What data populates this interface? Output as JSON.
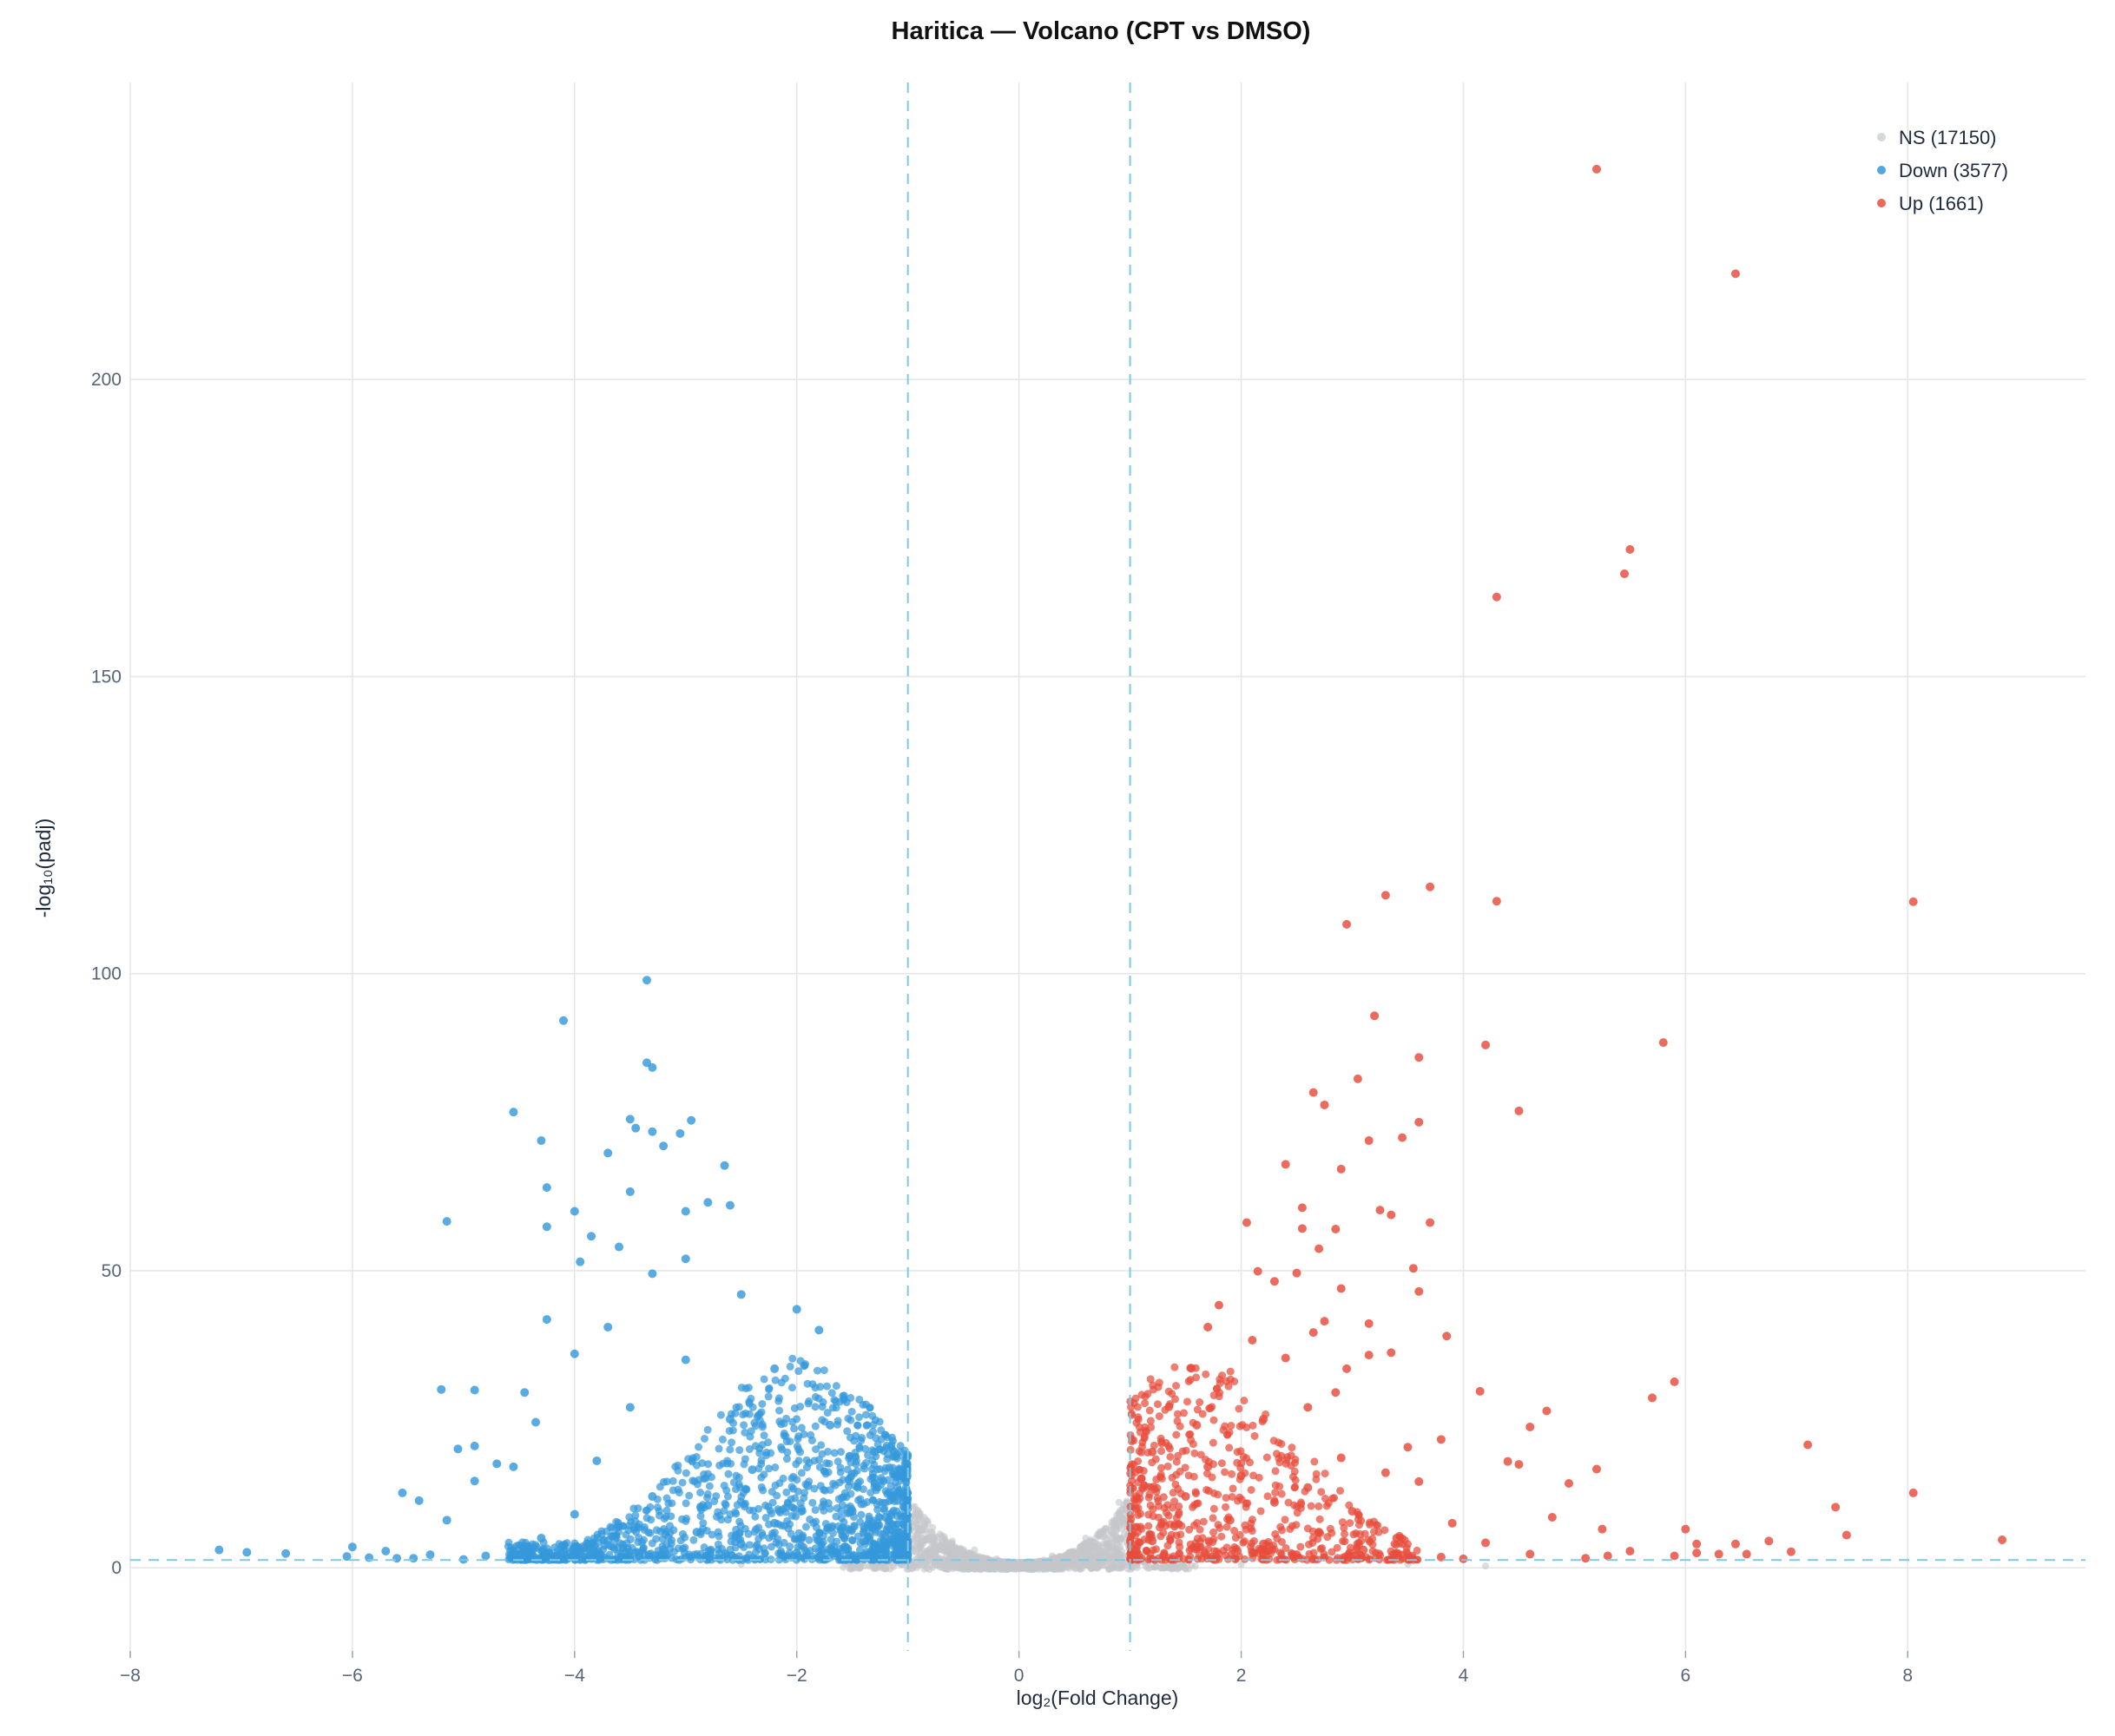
{
  "chart_data": {
    "type": "scatter",
    "title": "Haritica — Volcano (CPT vs DMSO)",
    "xlabel": "log₂(Fold Change)",
    "ylabel": "-log₁₀(padj)",
    "xlim": [
      -8,
      9.6
    ],
    "ylim": [
      -14,
      250
    ],
    "xticks": [
      -8,
      -6,
      -4,
      -2,
      0,
      2,
      4,
      6,
      8
    ],
    "yticks": [
      0,
      50,
      100,
      150,
      200
    ],
    "grid": true,
    "legend_position": "top-right",
    "thresholds": {
      "log2fc": [
        -1,
        1
      ],
      "neg_log10_padj": 1.3
    },
    "colors": {
      "ns": "#c4c7ca",
      "down": "#3498db",
      "up": "#e74c3c",
      "threshold": "#7ec8e3"
    },
    "series": [
      {
        "name": "NS (17150)",
        "key": "ns",
        "count": 17150,
        "points": [
          [
            -0.6,
            4.5
          ],
          [
            -0.4,
            3.0
          ],
          [
            -0.2,
            1.5
          ],
          [
            0.0,
            0.8
          ],
          [
            0.3,
            2.0
          ],
          [
            0.6,
            5.0
          ],
          [
            0.9,
            11.0
          ],
          [
            -0.9,
            8.0
          ],
          [
            -1.5,
            0.5
          ],
          [
            -2.5,
            0.6
          ],
          [
            2.0,
            0.5
          ],
          [
            3.5,
            0.6
          ],
          [
            4.2,
            0.3
          ]
        ]
      },
      {
        "name": "Down (3577)",
        "key": "down",
        "count": 3577,
        "points": [
          [
            -3.35,
            98.9
          ],
          [
            -4.1,
            92.1
          ],
          [
            -3.35,
            85.0
          ],
          [
            -3.3,
            84.2
          ],
          [
            -4.55,
            76.7
          ],
          [
            -3.5,
            75.5
          ],
          [
            -2.95,
            75.3
          ],
          [
            -3.45,
            74.0
          ],
          [
            -3.05,
            73.1
          ],
          [
            -3.3,
            73.4
          ],
          [
            -4.3,
            71.9
          ],
          [
            -3.2,
            71.0
          ],
          [
            -3.7,
            69.8
          ],
          [
            -2.65,
            67.7
          ],
          [
            -4.25,
            64.0
          ],
          [
            -3.5,
            63.3
          ],
          [
            -2.8,
            61.5
          ],
          [
            -2.6,
            61.0
          ],
          [
            -4.0,
            60.0
          ],
          [
            -3.0,
            60.0
          ],
          [
            -5.15,
            58.3
          ],
          [
            -4.25,
            57.4
          ],
          [
            -3.85,
            55.8
          ],
          [
            -3.6,
            54.0
          ],
          [
            -3.0,
            52.0
          ],
          [
            -3.95,
            51.5
          ],
          [
            -3.3,
            49.5
          ],
          [
            -2.5,
            46.0
          ],
          [
            -2.0,
            43.5
          ],
          [
            -4.25,
            41.8
          ],
          [
            -3.7,
            40.5
          ],
          [
            -1.8,
            40.0
          ],
          [
            -4.0,
            36.0
          ],
          [
            -3.0,
            35.0
          ],
          [
            -2.2,
            33.5
          ],
          [
            -5.2,
            30.0
          ],
          [
            -4.9,
            29.9
          ],
          [
            -4.45,
            29.5
          ],
          [
            -3.5,
            27.0
          ],
          [
            -2.6,
            25.0
          ],
          [
            -1.7,
            24.0
          ],
          [
            -4.35,
            24.5
          ],
          [
            -4.9,
            20.5
          ],
          [
            -5.05,
            20.0
          ],
          [
            -1.3,
            19.5
          ],
          [
            -3.8,
            18.0
          ],
          [
            -4.7,
            17.5
          ],
          [
            -4.55,
            17.0
          ],
          [
            -2.4,
            16.5
          ],
          [
            -1.1,
            15.5
          ],
          [
            -4.9,
            14.6
          ],
          [
            -1.9,
            13.8
          ],
          [
            -5.55,
            12.6
          ],
          [
            -3.3,
            12.0
          ],
          [
            -5.4,
            11.3
          ],
          [
            -2.8,
            10.5
          ],
          [
            -1.5,
            9.5
          ],
          [
            -4.0,
            9.0
          ],
          [
            -1.2,
            8.5
          ],
          [
            -5.15,
            8.0
          ],
          [
            -2.2,
            7.5
          ],
          [
            -3.6,
            7.0
          ],
          [
            -1.6,
            6.5
          ],
          [
            -2.9,
            6.0
          ],
          [
            -1.05,
            5.5
          ],
          [
            -4.3,
            5.0
          ],
          [
            -1.8,
            4.5
          ],
          [
            -2.5,
            4.0
          ],
          [
            -1.3,
            3.5
          ],
          [
            -6.0,
            3.5
          ],
          [
            -3.2,
            3.0
          ],
          [
            -7.2,
            3.0
          ],
          [
            -6.95,
            2.6
          ],
          [
            -6.6,
            2.4
          ],
          [
            -5.7,
            2.8
          ],
          [
            -5.3,
            2.2
          ],
          [
            -6.05,
            1.9
          ],
          [
            -5.85,
            1.7
          ],
          [
            -5.6,
            1.6
          ],
          [
            -5.45,
            1.6
          ],
          [
            -4.8,
            2.0
          ],
          [
            -2.0,
            2.5
          ],
          [
            -1.4,
            2.0
          ],
          [
            -3.9,
            1.8
          ],
          [
            -2.7,
            1.6
          ],
          [
            -1.1,
            1.5
          ],
          [
            -4.3,
            1.4
          ],
          [
            -5.0,
            1.4
          ]
        ]
      },
      {
        "name": "Up (1661)",
        "key": "up",
        "count": 1661,
        "points": [
          [
            5.2,
            235.4
          ],
          [
            6.45,
            217.8
          ],
          [
            5.5,
            171.4
          ],
          [
            5.45,
            167.3
          ],
          [
            4.3,
            163.4
          ],
          [
            3.7,
            114.6
          ],
          [
            3.3,
            113.2
          ],
          [
            4.3,
            112.2
          ],
          [
            8.05,
            112.1
          ],
          [
            2.95,
            108.3
          ],
          [
            3.2,
            92.9
          ],
          [
            5.8,
            88.4
          ],
          [
            4.2,
            88.0
          ],
          [
            3.6,
            85.9
          ],
          [
            3.05,
            82.3
          ],
          [
            2.65,
            80.0
          ],
          [
            2.75,
            77.9
          ],
          [
            4.5,
            76.9
          ],
          [
            3.6,
            75.0
          ],
          [
            3.45,
            72.4
          ],
          [
            3.15,
            71.9
          ],
          [
            2.4,
            67.9
          ],
          [
            2.9,
            67.1
          ],
          [
            3.25,
            60.2
          ],
          [
            2.55,
            60.6
          ],
          [
            3.35,
            59.4
          ],
          [
            2.05,
            58.1
          ],
          [
            3.7,
            58.1
          ],
          [
            2.85,
            57.0
          ],
          [
            2.55,
            57.1
          ],
          [
            2.7,
            53.7
          ],
          [
            3.55,
            50.4
          ],
          [
            2.15,
            49.9
          ],
          [
            2.5,
            49.6
          ],
          [
            3.6,
            46.5
          ],
          [
            2.9,
            47.0
          ],
          [
            2.3,
            48.2
          ],
          [
            1.8,
            44.2
          ],
          [
            1.7,
            40.5
          ],
          [
            2.75,
            41.5
          ],
          [
            3.15,
            41.1
          ],
          [
            3.85,
            39.0
          ],
          [
            2.1,
            38.3
          ],
          [
            2.65,
            39.6
          ],
          [
            2.4,
            35.3
          ],
          [
            3.35,
            36.2
          ],
          [
            1.55,
            33.6
          ],
          [
            2.95,
            33.5
          ],
          [
            3.15,
            35.8
          ],
          [
            5.9,
            31.3
          ],
          [
            2.85,
            29.5
          ],
          [
            4.15,
            29.7
          ],
          [
            5.7,
            28.6
          ],
          [
            1.35,
            27.1
          ],
          [
            2.6,
            27.0
          ],
          [
            4.75,
            26.4
          ],
          [
            2.2,
            25.0
          ],
          [
            1.6,
            24.0
          ],
          [
            4.6,
            23.7
          ],
          [
            3.8,
            21.6
          ],
          [
            3.5,
            20.3
          ],
          [
            7.1,
            20.7
          ],
          [
            1.2,
            19.5
          ],
          [
            2.9,
            18.5
          ],
          [
            4.4,
            17.9
          ],
          [
            1.7,
            17.0
          ],
          [
            5.2,
            16.6
          ],
          [
            4.5,
            17.4
          ],
          [
            3.3,
            16.0
          ],
          [
            2.0,
            15.5
          ],
          [
            1.1,
            15.0
          ],
          [
            4.95,
            14.2
          ],
          [
            3.6,
            14.5
          ],
          [
            2.6,
            13.5
          ],
          [
            8.05,
            12.6
          ],
          [
            1.5,
            12.0
          ],
          [
            2.3,
            11.0
          ],
          [
            7.35,
            10.2
          ],
          [
            1.05,
            10.0
          ],
          [
            3.0,
            9.5
          ],
          [
            4.8,
            8.5
          ],
          [
            1.9,
            8.0
          ],
          [
            3.9,
            7.5
          ],
          [
            6.0,
            6.5
          ],
          [
            5.25,
            6.5
          ],
          [
            7.45,
            5.5
          ],
          [
            1.4,
            7.0
          ],
          [
            2.7,
            6.0
          ],
          [
            8.85,
            4.7
          ],
          [
            3.4,
            5.0
          ],
          [
            1.2,
            4.5
          ],
          [
            4.2,
            4.2
          ],
          [
            6.1,
            4.0
          ],
          [
            6.45,
            4.0
          ],
          [
            6.75,
            4.5
          ],
          [
            2.2,
            4.0
          ],
          [
            1.6,
            3.5
          ],
          [
            3.1,
            3.0
          ],
          [
            6.95,
            2.7
          ],
          [
            5.5,
            2.8
          ],
          [
            6.1,
            2.5
          ],
          [
            6.3,
            2.3
          ],
          [
            6.55,
            2.3
          ],
          [
            5.3,
            2.0
          ],
          [
            5.9,
            2.0
          ],
          [
            4.6,
            2.3
          ],
          [
            2.5,
            2.2
          ],
          [
            3.8,
            1.8
          ],
          [
            1.3,
            2.0
          ],
          [
            5.1,
            1.6
          ],
          [
            4.0,
            1.5
          ],
          [
            1.1,
            1.6
          ]
        ]
      }
    ]
  }
}
